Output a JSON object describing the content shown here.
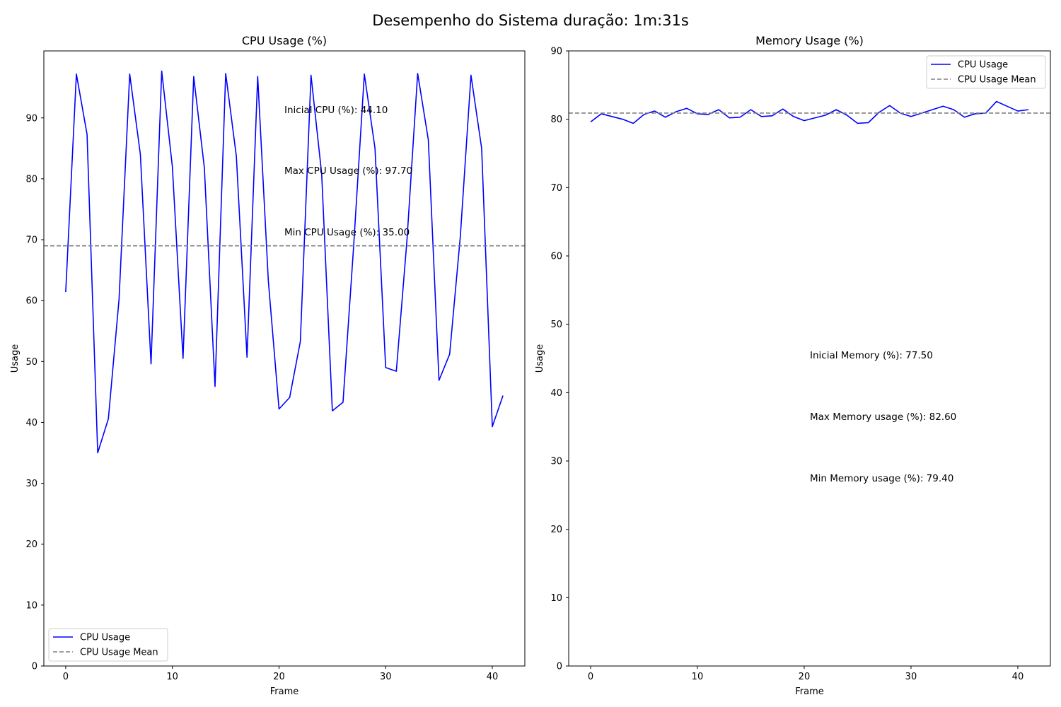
{
  "suptitle": "Desempenho do Sistema duração: 1m:31s",
  "colors": {
    "series": "#0000ff",
    "mean": "#808080"
  },
  "chart_data": [
    {
      "type": "line",
      "title": "CPU Usage (%)",
      "xlabel": "Frame",
      "ylabel": "Usage",
      "xlim": [
        -2.05,
        43.05
      ],
      "ylim": [
        0,
        101
      ],
      "xticks": [
        0,
        10,
        20,
        30,
        40
      ],
      "yticks": [
        0,
        10,
        20,
        30,
        40,
        50,
        60,
        70,
        80,
        90
      ],
      "series": [
        {
          "name": "CPU Usage",
          "x": [
            0,
            1,
            2,
            3,
            4,
            5,
            6,
            7,
            8,
            9,
            10,
            11,
            12,
            13,
            14,
            15,
            16,
            17,
            18,
            19,
            20,
            21,
            22,
            23,
            24,
            25,
            26,
            27,
            28,
            29,
            30,
            31,
            32,
            33,
            34,
            35,
            36,
            37,
            38,
            39,
            40,
            41
          ],
          "values": [
            61.4,
            97.2,
            87.3,
            35.0,
            40.6,
            60.2,
            97.2,
            84.0,
            49.6,
            97.7,
            82.0,
            50.5,
            96.8,
            81.8,
            45.9,
            97.3,
            83.7,
            50.7,
            96.8,
            63.2,
            42.2,
            44.1,
            53.3,
            97.0,
            80.8,
            41.9,
            43.3,
            69.0,
            97.2,
            85.0,
            49.0,
            48.4,
            70.0,
            97.3,
            86.4,
            46.9,
            51.2,
            70.5,
            97.0,
            85.0,
            39.3,
            44.4
          ]
        },
        {
          "name": "CPU Usage Mean",
          "mean": 69.0
        }
      ],
      "annotations": [
        "Inicial CPU (%): 44.10",
        "Max CPU Usage (%): 97.70",
        "Min CPU Usage (%): 35.00"
      ],
      "legend": "lower-left",
      "grid": false
    },
    {
      "type": "line",
      "title": "Memory Usage (%)",
      "xlabel": "Frame",
      "ylabel": "Usage",
      "xlim": [
        -2.05,
        43.05
      ],
      "ylim": [
        0,
        90
      ],
      "xticks": [
        0,
        10,
        20,
        30,
        40
      ],
      "yticks": [
        0,
        10,
        20,
        30,
        40,
        50,
        60,
        70,
        80,
        90
      ],
      "series": [
        {
          "name": "CPU Usage",
          "x": [
            0,
            1,
            2,
            3,
            4,
            5,
            6,
            7,
            8,
            9,
            10,
            11,
            12,
            13,
            14,
            15,
            16,
            17,
            18,
            19,
            20,
            21,
            22,
            23,
            24,
            25,
            26,
            27,
            28,
            29,
            30,
            31,
            32,
            33,
            34,
            35,
            36,
            37,
            38,
            39,
            40,
            41
          ],
          "values": [
            79.6,
            80.8,
            80.4,
            80.0,
            79.4,
            80.7,
            81.2,
            80.3,
            81.1,
            81.6,
            80.8,
            80.7,
            81.4,
            80.2,
            80.3,
            81.4,
            80.4,
            80.5,
            81.5,
            80.4,
            79.8,
            80.2,
            80.6,
            81.4,
            80.6,
            79.4,
            79.5,
            81.0,
            82.0,
            80.9,
            80.4,
            80.9,
            81.4,
            81.9,
            81.4,
            80.3,
            80.8,
            80.9,
            82.6,
            81.9,
            81.2,
            81.4
          ]
        },
        {
          "name": "CPU Usage Mean",
          "mean": 80.9
        }
      ],
      "annotations": [
        "Inicial Memory (%): 77.50",
        "Max Memory usage (%): 82.60",
        "Min Memory usage (%): 79.40"
      ],
      "legend": "top-right",
      "grid": false
    }
  ]
}
